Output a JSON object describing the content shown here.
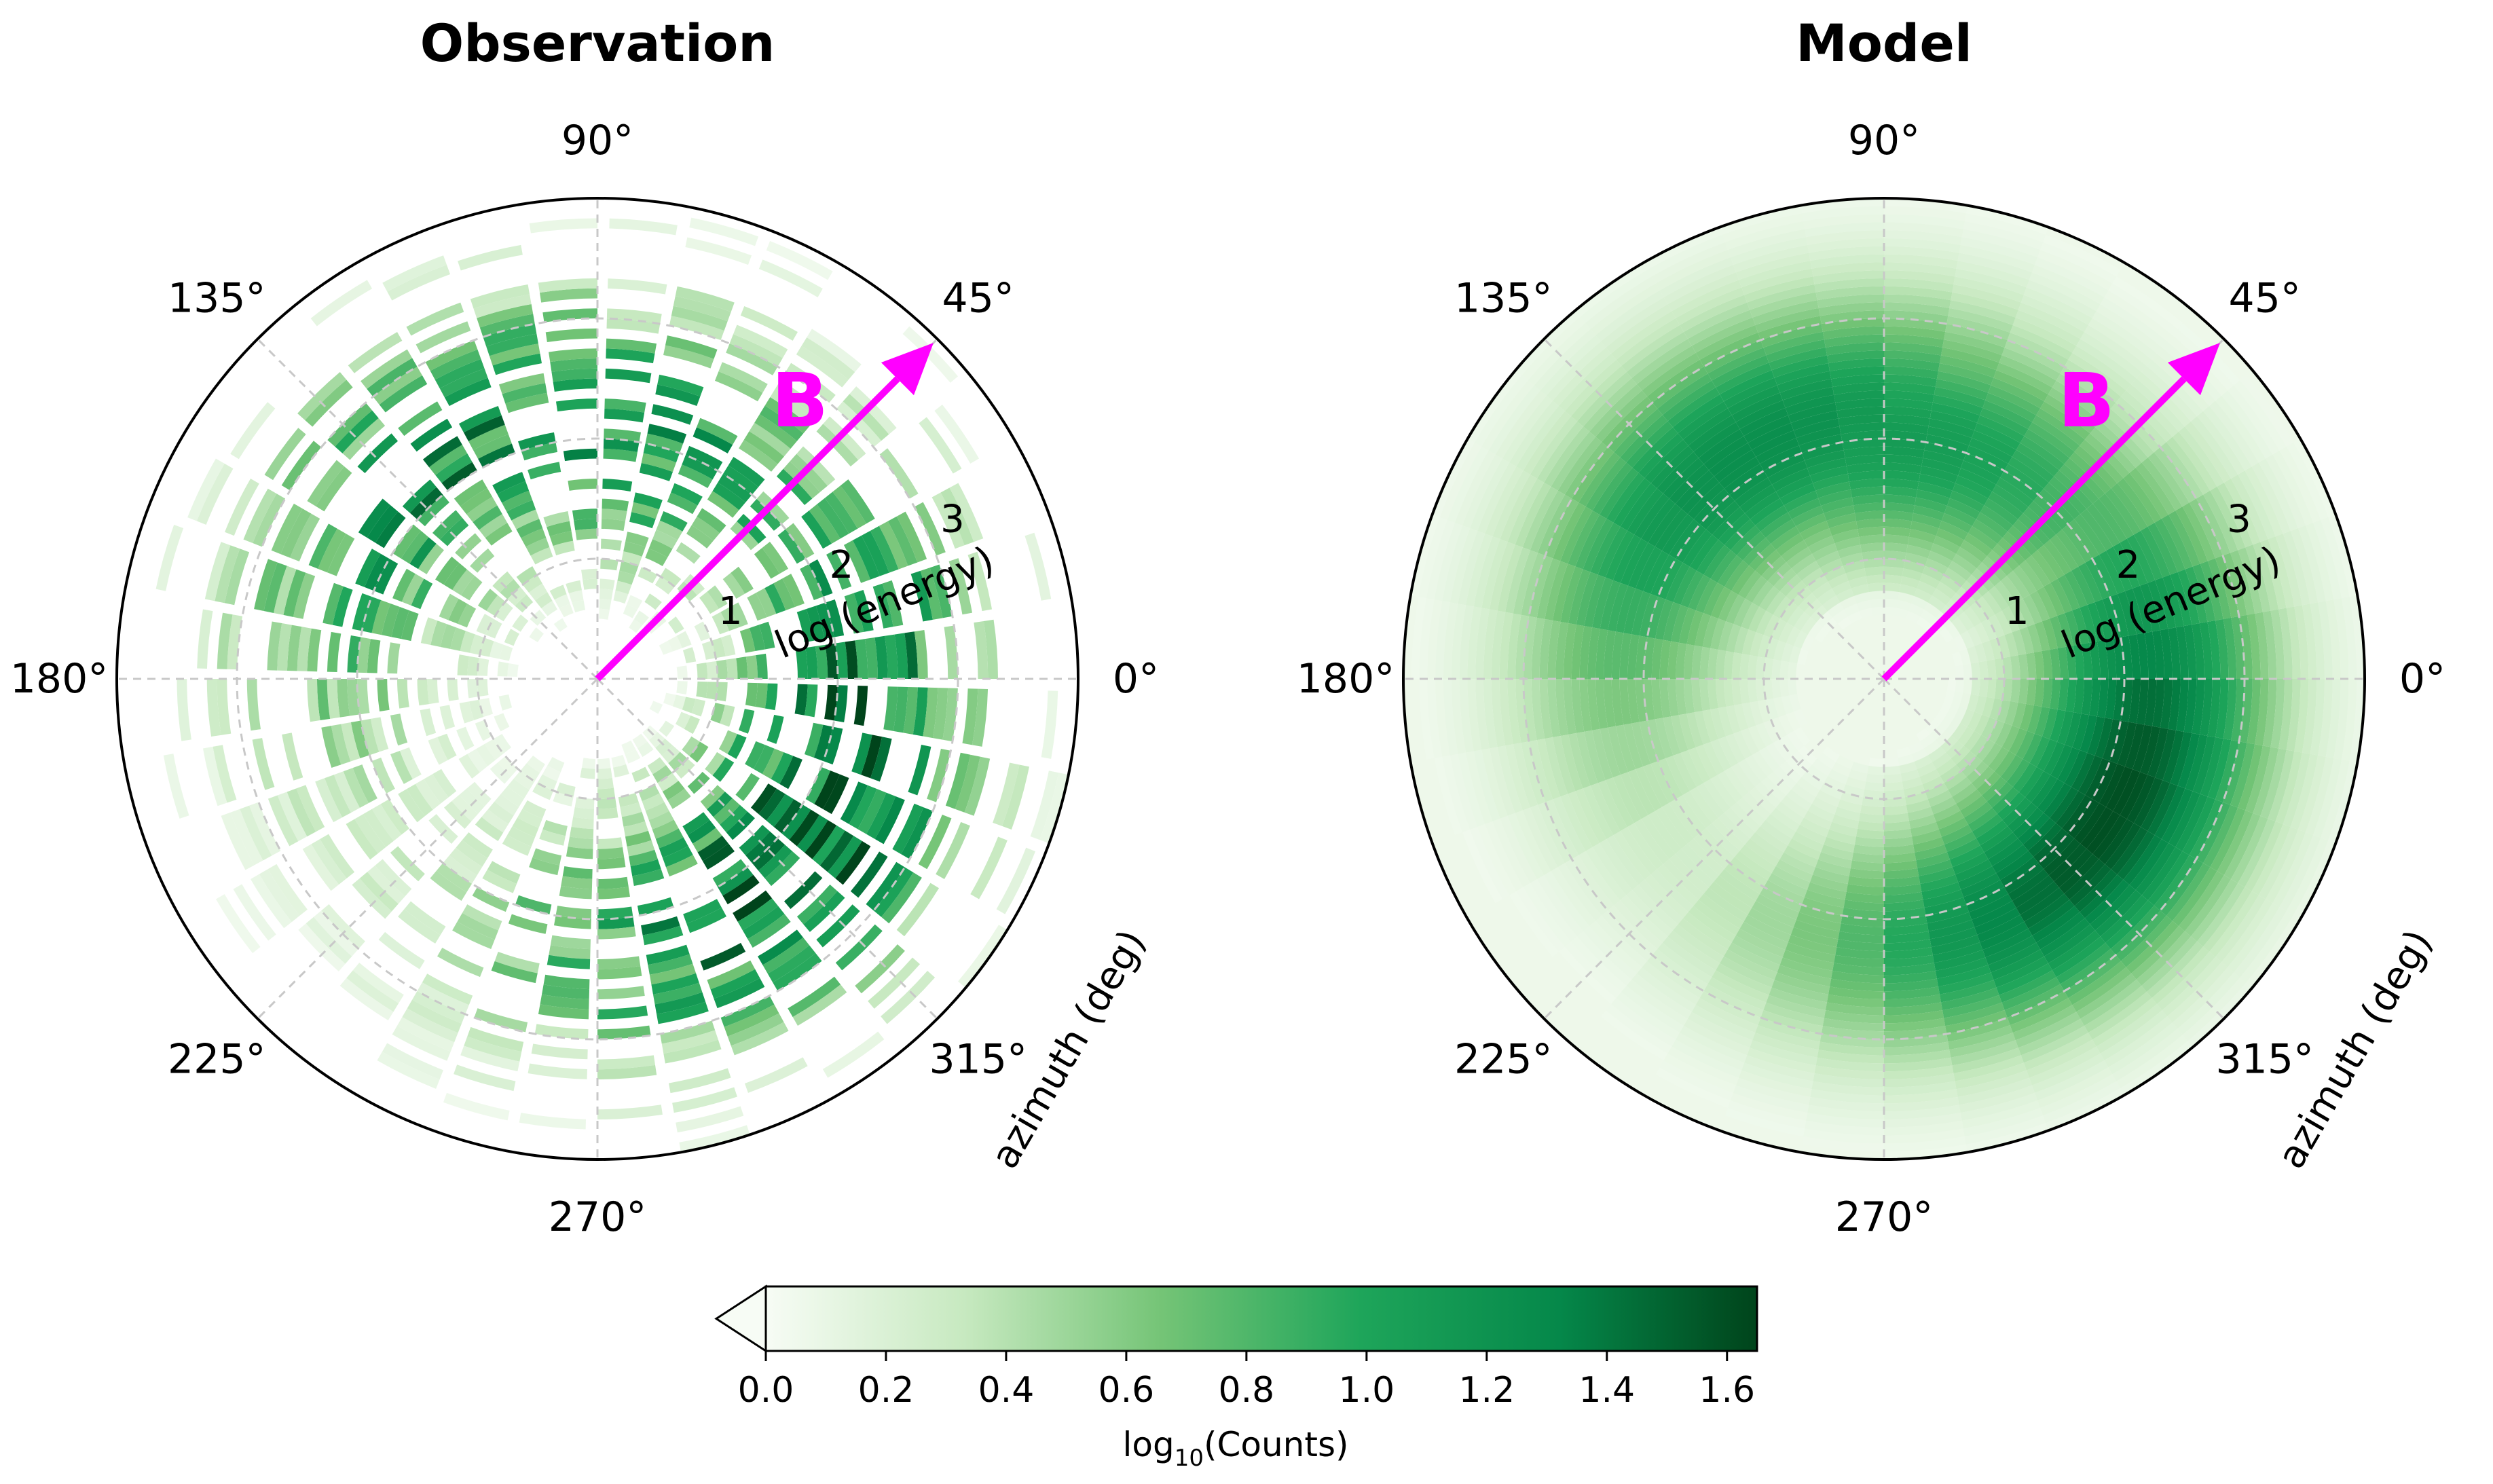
{
  "chart_data": [
    {
      "type": "polar-heatmap",
      "title": "Observation",
      "angle_ticks": [
        "0°",
        "45°",
        "90°",
        "135°",
        "180°",
        "225°",
        "270°",
        "315°"
      ],
      "angle_tick_values": [
        0,
        45,
        90,
        135,
        180,
        225,
        270,
        315
      ],
      "radial_ticks": [
        "1",
        "2",
        "3"
      ],
      "radial_tick_values": [
        1,
        2,
        3
      ],
      "radial_label": "log (energy)",
      "angular_label": "azimuth (deg)",
      "rlim": [
        0,
        4
      ],
      "grid": true,
      "field_label": "B",
      "field_angle_deg": 45,
      "field_color": "#ff00ff",
      "noisy": true,
      "hotspots": [
        {
          "angle_deg": 330,
          "r": 2.2,
          "value": 1.55
        },
        {
          "angle_deg": 120,
          "r": 2.2,
          "value": 1.15
        },
        {
          "angle_deg": 85,
          "r": 2.0,
          "value": 1.05
        }
      ]
    },
    {
      "type": "polar-heatmap",
      "title": "Model",
      "angle_ticks": [
        "0°",
        "45°",
        "90°",
        "135°",
        "180°",
        "225°",
        "270°",
        "315°"
      ],
      "angle_tick_values": [
        0,
        45,
        90,
        135,
        180,
        225,
        270,
        315
      ],
      "radial_ticks": [
        "1",
        "2",
        "3"
      ],
      "radial_tick_values": [
        1,
        2,
        3
      ],
      "radial_label": "log (energy)",
      "angular_label": "azimuth (deg)",
      "rlim": [
        0,
        4
      ],
      "grid": true,
      "field_label": "B",
      "field_angle_deg": 45,
      "field_color": "#ff00ff",
      "noisy": false,
      "hotspots": [
        {
          "angle_deg": 330,
          "r": 2.2,
          "value": 1.6
        },
        {
          "angle_deg": 120,
          "r": 2.2,
          "value": 1.25
        },
        {
          "angle_deg": 85,
          "r": 2.0,
          "value": 1.1
        }
      ]
    }
  ],
  "colorbar": {
    "label_base": "log",
    "label_sub": "10",
    "label_rest": "(Counts)",
    "vmin": 0.0,
    "vmax": 1.65,
    "ticks": [
      "0.0",
      "0.2",
      "0.4",
      "0.6",
      "0.8",
      "1.0",
      "1.2",
      "1.4",
      "1.6"
    ],
    "tick_values": [
      0.0,
      0.2,
      0.4,
      0.6,
      0.8,
      1.0,
      1.2,
      1.4,
      1.6
    ],
    "extend": "min",
    "colormap": [
      "#f7fcf5",
      "#c7e9c0",
      "#74c476",
      "#1ea55a",
      "#05884a",
      "#00441b"
    ]
  }
}
